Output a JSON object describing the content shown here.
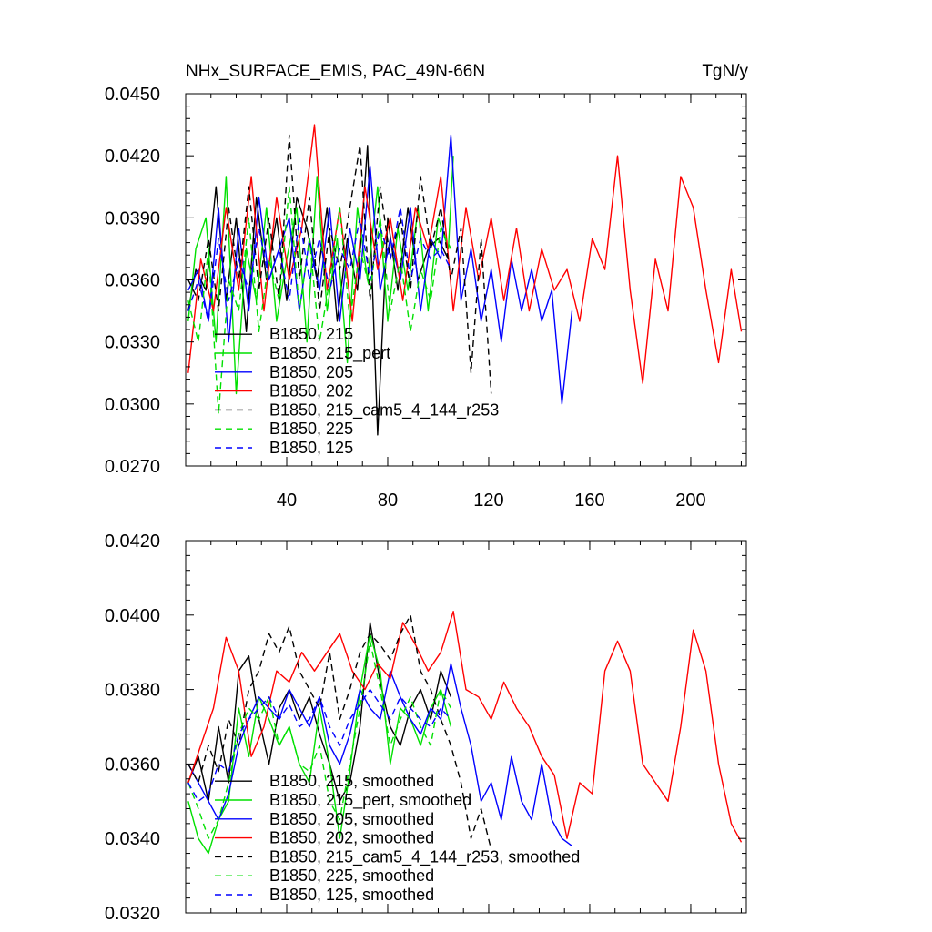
{
  "chart_data": [
    {
      "type": "line",
      "title": "NHx_SURFACE_EMIS, PAC_49N-66N",
      "units": "TgN/y",
      "xlim": [
        0,
        222
      ],
      "ylim": [
        0.027,
        0.045
      ],
      "xticks": [
        40,
        80,
        120,
        160,
        200
      ],
      "xtick_labels": [
        "40",
        "80",
        "120",
        "160",
        "200"
      ],
      "yticks": [
        0.027,
        0.03,
        0.033,
        0.036,
        0.039,
        0.042,
        0.045
      ],
      "ytick_labels": [
        "0.0270",
        "0.0300",
        "0.0330",
        "0.0360",
        "0.0390",
        "0.0420",
        "0.0450"
      ],
      "legend_position": "lower-left",
      "series": [
        {
          "name": "B1850, 215",
          "color": "#000000",
          "dash": "solid",
          "x": [
            1,
            4,
            8,
            12,
            16,
            20,
            24,
            28,
            32,
            36,
            40,
            44,
            48,
            52,
            56,
            60,
            64,
            68,
            72,
            76,
            80,
            84,
            88,
            92,
            96,
            100,
            104
          ],
          "y": [
            0.0345,
            0.0365,
            0.0355,
            0.0405,
            0.035,
            0.039,
            0.0335,
            0.04,
            0.036,
            0.039,
            0.035,
            0.04,
            0.0385,
            0.036,
            0.0395,
            0.034,
            0.038,
            0.0355,
            0.0425,
            0.0285,
            0.039,
            0.0355,
            0.0395,
            0.036,
            0.0375,
            0.038,
            0.037
          ]
        },
        {
          "name": "B1850, 215_pert",
          "color": "#00e000",
          "dash": "solid",
          "x": [
            1,
            4,
            8,
            12,
            16,
            20,
            24,
            28,
            32,
            36,
            40,
            44,
            48,
            52,
            56,
            60,
            64,
            68,
            72,
            76,
            80,
            84,
            88,
            92,
            96,
            100,
            104,
            106
          ],
          "y": [
            0.034,
            0.0375,
            0.039,
            0.033,
            0.041,
            0.0305,
            0.0375,
            0.035,
            0.0395,
            0.034,
            0.037,
            0.0395,
            0.033,
            0.041,
            0.0345,
            0.038,
            0.032,
            0.0395,
            0.036,
            0.0405,
            0.034,
            0.0385,
            0.0355,
            0.0395,
            0.0345,
            0.039,
            0.0375,
            0.042
          ]
        },
        {
          "name": "B1850, 205",
          "color": "#0000ff",
          "dash": "solid",
          "x": [
            1,
            5,
            9,
            13,
            17,
            21,
            25,
            29,
            33,
            37,
            41,
            45,
            49,
            53,
            57,
            61,
            65,
            69,
            73,
            77,
            81,
            85,
            89,
            93,
            97,
            101,
            105,
            109,
            113,
            117,
            121,
            125,
            129,
            133,
            137,
            141,
            145,
            149,
            153
          ],
          "y": [
            0.0355,
            0.0365,
            0.034,
            0.0395,
            0.033,
            0.0385,
            0.0345,
            0.04,
            0.036,
            0.0375,
            0.039,
            0.0345,
            0.038,
            0.0355,
            0.0395,
            0.034,
            0.0385,
            0.036,
            0.0415,
            0.0355,
            0.038,
            0.036,
            0.0395,
            0.0345,
            0.038,
            0.037,
            0.043,
            0.035,
            0.0375,
            0.034,
            0.0365,
            0.033,
            0.037,
            0.0345,
            0.0365,
            0.034,
            0.0355,
            0.03,
            0.0345
          ]
        },
        {
          "name": "B1850, 202",
          "color": "#ff0000",
          "dash": "solid",
          "x": [
            1,
            6,
            11,
            16,
            21,
            26,
            31,
            36,
            41,
            46,
            51,
            56,
            61,
            66,
            71,
            76,
            81,
            86,
            91,
            96,
            101,
            106,
            111,
            116,
            121,
            126,
            131,
            136,
            141,
            146,
            151,
            156,
            161,
            166,
            171,
            176,
            181,
            186,
            191,
            196,
            201,
            206,
            211,
            216,
            220
          ],
          "y": [
            0.0315,
            0.037,
            0.0345,
            0.0395,
            0.0355,
            0.041,
            0.0345,
            0.04,
            0.036,
            0.0385,
            0.0435,
            0.0355,
            0.0395,
            0.034,
            0.0405,
            0.0365,
            0.039,
            0.035,
            0.0395,
            0.0375,
            0.041,
            0.0345,
            0.0395,
            0.036,
            0.039,
            0.035,
            0.0385,
            0.0345,
            0.0375,
            0.0355,
            0.0365,
            0.034,
            0.038,
            0.0365,
            0.042,
            0.0355,
            0.031,
            0.037,
            0.0345,
            0.041,
            0.0395,
            0.0355,
            0.032,
            0.0365,
            0.0335
          ]
        },
        {
          "name": "B1850, 215_cam5_4_144_r253",
          "color": "#000000",
          "dash": "dashed",
          "x": [
            1,
            5,
            9,
            13,
            17,
            21,
            25,
            29,
            33,
            37,
            41,
            45,
            49,
            53,
            57,
            61,
            65,
            69,
            73,
            77,
            81,
            85,
            89,
            93,
            97,
            101,
            105,
            109,
            113,
            117,
            121
          ],
          "y": [
            0.036,
            0.035,
            0.038,
            0.0345,
            0.0395,
            0.036,
            0.0405,
            0.0355,
            0.039,
            0.035,
            0.043,
            0.036,
            0.04,
            0.0345,
            0.0385,
            0.0365,
            0.0395,
            0.0425,
            0.035,
            0.0405,
            0.037,
            0.039,
            0.0355,
            0.041,
            0.0375,
            0.0395,
            0.036,
            0.0385,
            0.0315,
            0.038,
            0.0305
          ]
        },
        {
          "name": "B1850, 225",
          "color": "#00e000",
          "dash": "dashed",
          "x": [
            1,
            5,
            9,
            13,
            17,
            21,
            25,
            29,
            33,
            37,
            41,
            45,
            49,
            53,
            57,
            61,
            65,
            69,
            73,
            77,
            81,
            85,
            89,
            93,
            97,
            101,
            105
          ],
          "y": [
            0.035,
            0.033,
            0.0375,
            0.0295,
            0.036,
            0.0345,
            0.039,
            0.0335,
            0.037,
            0.035,
            0.0405,
            0.0345,
            0.038,
            0.033,
            0.036,
            0.0395,
            0.034,
            0.0375,
            0.0355,
            0.039,
            0.0345,
            0.037,
            0.0335,
            0.0365,
            0.035,
            0.0385,
            0.0375
          ]
        },
        {
          "name": "B1850, 125",
          "color": "#0000ff",
          "dash": "dashed",
          "x": [
            1,
            5,
            9,
            13,
            17,
            21,
            25,
            29,
            33,
            37,
            41,
            45,
            49,
            53,
            57,
            61,
            65,
            69,
            73,
            77,
            81,
            85,
            89,
            93,
            97,
            101,
            105
          ],
          "y": [
            0.0345,
            0.036,
            0.034,
            0.038,
            0.035,
            0.037,
            0.0355,
            0.0385,
            0.036,
            0.0375,
            0.035,
            0.039,
            0.036,
            0.038,
            0.0355,
            0.0375,
            0.0365,
            0.039,
            0.036,
            0.0385,
            0.037,
            0.0395,
            0.036,
            0.038,
            0.037,
            0.0375,
            0.0365
          ]
        }
      ]
    },
    {
      "type": "line",
      "xlim": [
        0,
        222
      ],
      "ylim": [
        0.032,
        0.042
      ],
      "xticks": [
        40,
        80,
        120,
        160,
        200
      ],
      "xtick_labels": [],
      "yticks": [
        0.032,
        0.034,
        0.036,
        0.038,
        0.04,
        0.042
      ],
      "ytick_labels": [
        "0.0320",
        "0.0340",
        "0.0360",
        "0.0380",
        "0.0400",
        "0.0420"
      ],
      "legend_position": "lower-left",
      "series": [
        {
          "name": "B1850, 215, smoothed",
          "color": "#000000",
          "dash": "solid",
          "x": [
            1,
            5,
            9,
            13,
            17,
            21,
            25,
            29,
            33,
            37,
            41,
            45,
            49,
            53,
            57,
            61,
            65,
            69,
            73,
            77,
            81,
            85,
            89,
            93,
            97,
            101,
            105
          ],
          "y": [
            0.0355,
            0.0362,
            0.035,
            0.037,
            0.0355,
            0.0385,
            0.0389,
            0.0372,
            0.036,
            0.0375,
            0.038,
            0.0372,
            0.0378,
            0.0368,
            0.036,
            0.035,
            0.0355,
            0.037,
            0.0398,
            0.0382,
            0.037,
            0.0365,
            0.0375,
            0.038,
            0.0372,
            0.0385,
            0.0378
          ]
        },
        {
          "name": "B1850, 215_pert, smoothed",
          "color": "#00e000",
          "dash": "solid",
          "x": [
            1,
            5,
            9,
            13,
            17,
            21,
            25,
            29,
            33,
            37,
            41,
            45,
            49,
            53,
            57,
            61,
            65,
            69,
            73,
            77,
            81,
            85,
            89,
            93,
            97,
            101,
            105
          ],
          "y": [
            0.035,
            0.034,
            0.0336,
            0.0345,
            0.035,
            0.0375,
            0.0362,
            0.0378,
            0.0372,
            0.0365,
            0.037,
            0.036,
            0.0355,
            0.0375,
            0.036,
            0.034,
            0.0358,
            0.038,
            0.0395,
            0.0385,
            0.036,
            0.0375,
            0.0372,
            0.0365,
            0.0375,
            0.038,
            0.037
          ]
        },
        {
          "name": "B1850, 205, smoothed",
          "color": "#0000ff",
          "dash": "solid",
          "x": [
            1,
            5,
            9,
            13,
            17,
            21,
            25,
            29,
            33,
            37,
            41,
            45,
            49,
            53,
            57,
            61,
            65,
            69,
            73,
            77,
            81,
            85,
            89,
            93,
            97,
            101,
            105,
            109,
            113,
            117,
            121,
            125,
            129,
            133,
            137,
            141,
            145,
            149,
            153
          ],
          "y": [
            0.036,
            0.0355,
            0.035,
            0.0345,
            0.0352,
            0.0365,
            0.0372,
            0.0378,
            0.0375,
            0.0372,
            0.038,
            0.0375,
            0.037,
            0.0378,
            0.0365,
            0.036,
            0.0368,
            0.038,
            0.0375,
            0.0372,
            0.0385,
            0.0378,
            0.0372,
            0.0368,
            0.0375,
            0.0372,
            0.0387,
            0.0375,
            0.0365,
            0.035,
            0.0355,
            0.0345,
            0.0362,
            0.035,
            0.0345,
            0.036,
            0.0345,
            0.034,
            0.0338
          ]
        },
        {
          "name": "B1850, 202, smoothed",
          "color": "#ff0000",
          "dash": "solid",
          "x": [
            1,
            6,
            11,
            16,
            21,
            26,
            31,
            36,
            41,
            46,
            51,
            56,
            61,
            66,
            71,
            76,
            81,
            86,
            91,
            96,
            101,
            106,
            111,
            116,
            121,
            126,
            131,
            136,
            141,
            146,
            151,
            156,
            161,
            166,
            171,
            176,
            181,
            186,
            191,
            196,
            201,
            206,
            211,
            216,
            220
          ],
          "y": [
            0.0355,
            0.0365,
            0.0375,
            0.0394,
            0.0385,
            0.0362,
            0.037,
            0.0385,
            0.0382,
            0.039,
            0.0385,
            0.039,
            0.0395,
            0.0385,
            0.038,
            0.0387,
            0.0383,
            0.0398,
            0.0392,
            0.0385,
            0.039,
            0.0401,
            0.038,
            0.0378,
            0.0372,
            0.0382,
            0.0375,
            0.037,
            0.0362,
            0.0357,
            0.034,
            0.0355,
            0.0352,
            0.0385,
            0.0393,
            0.0385,
            0.036,
            0.0355,
            0.035,
            0.037,
            0.0396,
            0.0385,
            0.036,
            0.0344,
            0.0339
          ]
        },
        {
          "name": "B1850, 215_cam5_4_144_r253, smoothed",
          "color": "#000000",
          "dash": "dashed",
          "x": [
            1,
            5,
            9,
            13,
            17,
            21,
            25,
            29,
            33,
            37,
            41,
            45,
            49,
            53,
            57,
            61,
            65,
            69,
            73,
            77,
            81,
            85,
            89,
            93,
            97,
            101,
            105,
            109,
            113,
            117,
            121
          ],
          "y": [
            0.036,
            0.0355,
            0.0365,
            0.0358,
            0.0372,
            0.0365,
            0.038,
            0.0385,
            0.0395,
            0.039,
            0.0397,
            0.0385,
            0.038,
            0.0375,
            0.039,
            0.0372,
            0.038,
            0.039,
            0.0395,
            0.0392,
            0.0388,
            0.0395,
            0.04,
            0.0385,
            0.038,
            0.0372,
            0.0365,
            0.0355,
            0.034,
            0.0348,
            0.0337
          ]
        },
        {
          "name": "B1850, 225, smoothed",
          "color": "#00e000",
          "dash": "dashed",
          "x": [
            1,
            5,
            9,
            13,
            17,
            21,
            25,
            29,
            33,
            37,
            41,
            45,
            49,
            53,
            57,
            61,
            65,
            69,
            73,
            77,
            81,
            85,
            89,
            93,
            97,
            101,
            105
          ],
          "y": [
            0.0355,
            0.0348,
            0.034,
            0.0345,
            0.0355,
            0.0368,
            0.0375,
            0.0372,
            0.0378,
            0.0365,
            0.037,
            0.036,
            0.0358,
            0.0365,
            0.035,
            0.0345,
            0.036,
            0.0375,
            0.0393,
            0.038,
            0.0365,
            0.0372,
            0.0378,
            0.037,
            0.0365,
            0.038,
            0.0375
          ]
        },
        {
          "name": "B1850, 125, smoothed",
          "color": "#0000ff",
          "dash": "dashed",
          "x": [
            1,
            5,
            9,
            13,
            17,
            21,
            25,
            29,
            33,
            37,
            41,
            45,
            49,
            53,
            57,
            61,
            65,
            69,
            73,
            77,
            81,
            85,
            89,
            93,
            97,
            101,
            105
          ],
          "y": [
            0.0355,
            0.035,
            0.0352,
            0.036,
            0.0358,
            0.0368,
            0.0372,
            0.0375,
            0.0378,
            0.0372,
            0.0376,
            0.037,
            0.0372,
            0.0378,
            0.037,
            0.0365,
            0.0372,
            0.0376,
            0.038,
            0.0376,
            0.0372,
            0.0378,
            0.0375,
            0.0372,
            0.037,
            0.0375,
            0.0372
          ]
        }
      ]
    }
  ]
}
